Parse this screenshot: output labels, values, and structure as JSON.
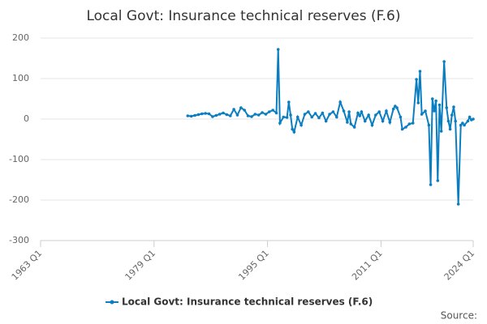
{
  "chart_data": {
    "type": "line",
    "title": "Local Govt: Insurance technical reserves (F.6)",
    "source": "Source:",
    "xlim": [
      1963,
      2024
    ],
    "xticks": [
      {
        "value": 1963,
        "label": "1963 Q1"
      },
      {
        "value": 1979,
        "label": "1979 Q1"
      },
      {
        "value": 1995,
        "label": "1995 Q1"
      },
      {
        "value": 2011,
        "label": "2011 Q1"
      },
      {
        "value": 2024,
        "label": "2024 Q1"
      }
    ],
    "ylim": [
      -300,
      200
    ],
    "yticks": [
      -300,
      -200,
      -100,
      0,
      100,
      200
    ],
    "grid": true,
    "legend": "bottom",
    "x": [
      1983.75,
      1984.25,
      1984.75,
      1985.25,
      1985.75,
      1986.25,
      1986.75,
      1987.25,
      1987.75,
      1988.25,
      1988.75,
      1989.25,
      1989.75,
      1990.25,
      1990.75,
      1991.25,
      1991.75,
      1992.25,
      1992.75,
      1993.25,
      1993.75,
      1994.25,
      1994.75,
      1995.25,
      1995.75,
      1996.25,
      1996.5,
      1996.75,
      1997.25,
      1997.75,
      1998.0,
      1998.25,
      1998.5,
      1998.75,
      1999.25,
      1999.75,
      2000.25,
      2000.75,
      2001.25,
      2001.75,
      2002.25,
      2002.75,
      2003.25,
      2003.75,
      2004.25,
      2004.75,
      2005.25,
      2005.75,
      2006.25,
      2006.5,
      2006.75,
      2007.25,
      2007.75,
      2008.0,
      2008.25,
      2008.75,
      2009.25,
      2009.75,
      2010.25,
      2010.75,
      2011.25,
      2011.75,
      2012.25,
      2012.75,
      2013.0,
      2013.25,
      2013.75,
      2014.0,
      2014.5,
      2015.0,
      2015.5,
      2016.0,
      2016.25,
      2016.5,
      2016.75,
      2017.25,
      2017.75,
      2018.0,
      2018.25,
      2018.5,
      2018.75,
      2019.0,
      2019.25,
      2019.5,
      2019.9,
      2020.25,
      2020.5,
      2020.75,
      2021.0,
      2021.25,
      2021.5,
      2021.9,
      2022.25,
      2022.5,
      2022.75,
      2023.25,
      2023.5,
      2023.75,
      2024.0
    ],
    "series": [
      {
        "name": "Local Govt: Insurance technical reserves (F.6)",
        "color": "#0b7ec2",
        "values": [
          8,
          7,
          9,
          11,
          13,
          14,
          13,
          6,
          9,
          12,
          15,
          11,
          8,
          24,
          10,
          28,
          22,
          8,
          6,
          12,
          10,
          16,
          12,
          18,
          22,
          15,
          172,
          -10,
          5,
          4,
          42,
          10,
          -25,
          -32,
          5,
          -15,
          12,
          18,
          5,
          14,
          3,
          15,
          -5,
          12,
          18,
          5,
          42,
          20,
          -8,
          18,
          -12,
          -20,
          15,
          8,
          18,
          -5,
          10,
          -15,
          10,
          18,
          -5,
          20,
          -8,
          25,
          32,
          28,
          5,
          -25,
          -20,
          -12,
          -10,
          98,
          40,
          118,
          12,
          20,
          -15,
          -162,
          50,
          20,
          45,
          -152,
          35,
          -30,
          142,
          28,
          -5,
          -25,
          10,
          30,
          -5,
          -210,
          -15,
          -10,
          -15,
          -5,
          5,
          -2,
          0
        ]
      }
    ]
  }
}
